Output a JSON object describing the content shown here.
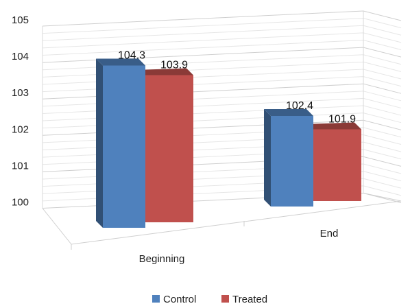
{
  "chart_data": {
    "type": "bar",
    "style": "3d-clustered-column",
    "categories": [
      "Beginning",
      "End"
    ],
    "series": [
      {
        "name": "Control",
        "values": [
          104.3,
          102.4
        ],
        "color": "#4f81bd"
      },
      {
        "name": "Treated",
        "values": [
          103.9,
          101.9
        ],
        "color": "#c0504d"
      }
    ],
    "data_labels": [
      [
        "104.3",
        "103.9"
      ],
      [
        "102.4",
        "101.9"
      ]
    ],
    "ylim": [
      100,
      105
    ],
    "yticks": [
      "100",
      "101",
      "102",
      "103",
      "104",
      "105"
    ],
    "minor_gridline_step": 0.2,
    "grid": true,
    "legend": "bottom",
    "title": "",
    "xlabel": "",
    "ylabel": ""
  }
}
